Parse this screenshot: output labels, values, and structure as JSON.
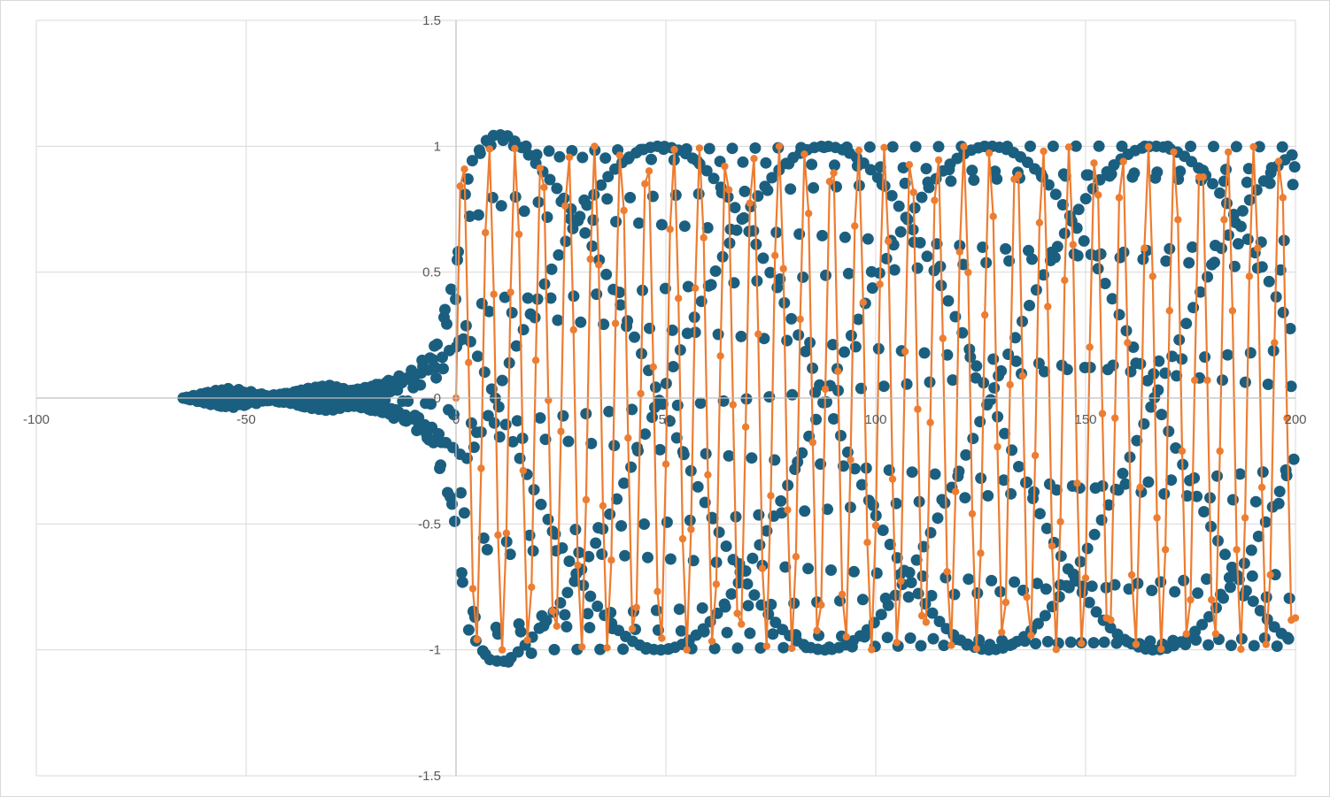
{
  "chart_data": {
    "type": "scatter",
    "title": "",
    "xlabel": "",
    "ylabel": "",
    "xlim": [
      -100,
      200
    ],
    "ylim": [
      -1.5,
      1.5
    ],
    "x_ticks": [
      -100,
      -50,
      0,
      50,
      100,
      150,
      200
    ],
    "y_ticks": [
      -1.5,
      -1,
      -0.5,
      0,
      0.5,
      1,
      1.5
    ],
    "x_tick_labels": [
      "-100",
      "-50",
      "0",
      "50",
      "100",
      "150",
      "200"
    ],
    "y_tick_labels": [
      "-1.5",
      "-1",
      "-0.5",
      "0",
      "0.5",
      "1",
      "1.5"
    ],
    "grid": true,
    "legend": "none",
    "series": [
      {
        "style": "markers",
        "color": "#1b5f80",
        "envelope_description": "dense oscillating band",
        "envelope_points": [
          {
            "x": -65,
            "amp": 0.0
          },
          {
            "x": -60,
            "amp": 0.02
          },
          {
            "x": -55,
            "amp": 0.04
          },
          {
            "x": -50,
            "amp": 0.03
          },
          {
            "x": -45,
            "amp": 0.01
          },
          {
            "x": -40,
            "amp": 0.02
          },
          {
            "x": -35,
            "amp": 0.04
          },
          {
            "x": -30,
            "amp": 0.05
          },
          {
            "x": -25,
            "amp": 0.03
          },
          {
            "x": -20,
            "amp": 0.05
          },
          {
            "x": -15,
            "amp": 0.08
          },
          {
            "x": -10,
            "amp": 0.12
          },
          {
            "x": -5,
            "amp": 0.22
          },
          {
            "x": 0,
            "amp": 0.55
          },
          {
            "x": 3,
            "amp": 0.95
          },
          {
            "x": 8,
            "amp": 1.04
          },
          {
            "x": 12,
            "amp": 1.05
          },
          {
            "x": 20,
            "amp": 1.0
          },
          {
            "x": 100,
            "amp": 1.0
          },
          {
            "x": 200,
            "amp": 1.0
          }
        ]
      },
      {
        "style": "markers-and-lines",
        "color": "#ed7d31",
        "x_start": 0,
        "x_end": 200,
        "x_step": 1,
        "waveform": "sin(x)",
        "amplitude": 1
      }
    ]
  }
}
